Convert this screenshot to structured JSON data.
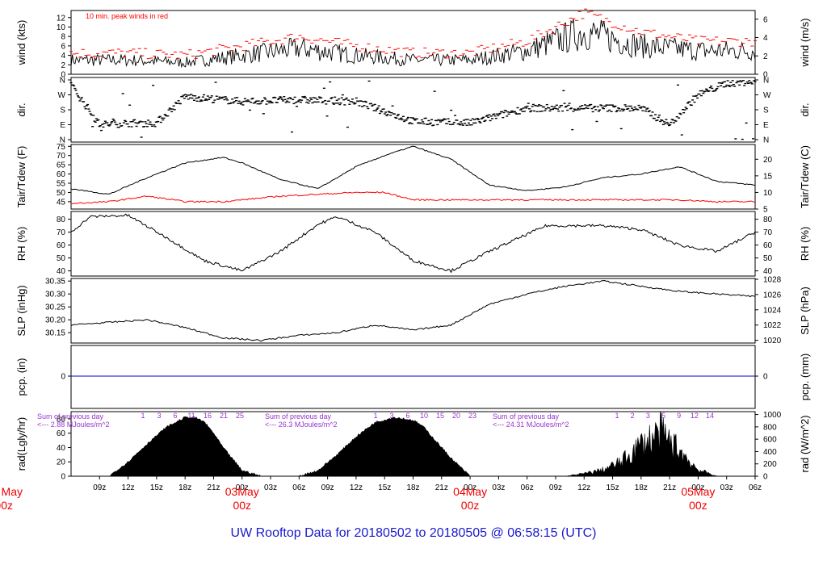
{
  "footer_title": "UW Rooftop Data for 20180502  to  20180505 @ 06:58:15  (UTC)",
  "x_axis": {
    "ticks": [
      "09z",
      "12z",
      "15z",
      "18z",
      "21z",
      "00z",
      "03z",
      "06z",
      "09z",
      "12z",
      "15z",
      "18z",
      "21z",
      "00z",
      "03z",
      "06z",
      "09z",
      "12z",
      "15z",
      "18z",
      "21z",
      "00z",
      "03z",
      "06z"
    ],
    "day_labels": [
      {
        "date": "May",
        "hour": "00z"
      },
      {
        "date": "03May",
        "hour": "00z"
      },
      {
        "date": "04May",
        "hour": "00z"
      },
      {
        "date": "05May",
        "hour": "00z"
      }
    ]
  },
  "colors": {
    "peak": "#ff0000",
    "series": "#000000",
    "dew": "#ff0000",
    "precip": "#0000cc",
    "day_label": "#ee0000",
    "footer": "#1a1acc",
    "annotation": "#9933cc"
  },
  "chart_data": [
    {
      "type": "line",
      "name": "wind",
      "ylabel": "wind (kts)",
      "ylabel_right": "wind (m/s)",
      "annotation": "10 min. peak winds in red",
      "yticks": [
        "0",
        "2",
        "4",
        "6",
        "8",
        "10",
        "12"
      ],
      "yticks_right": [
        "0",
        "2",
        "4",
        "6"
      ],
      "ylim": [
        0,
        13.5
      ],
      "hours": [
        0,
        6,
        12,
        18,
        24,
        30,
        36,
        42,
        48,
        54,
        60,
        66,
        72
      ],
      "series": [
        {
          "values": [
            3,
            3,
            2.5,
            4,
            5.5,
            4,
            3,
            3,
            5,
            9,
            6,
            5,
            5
          ]
        },
        {
          "values": [
            4.5,
            4.5,
            4,
            6,
            8,
            6,
            4.5,
            4.5,
            7,
            13,
            9,
            7,
            7
          ]
        }
      ]
    },
    {
      "type": "scatter",
      "name": "dir",
      "ylabel": "dir.",
      "yticks": [
        "N",
        "E",
        "S",
        "W",
        "N"
      ],
      "yticks_right": [
        "N",
        "E",
        "S",
        "W",
        "N"
      ],
      "hours": [
        0,
        3,
        6,
        9,
        12,
        18,
        24,
        30,
        36,
        42,
        48,
        54,
        60,
        63,
        66,
        69,
        72
      ],
      "values": [
        330,
        90,
        100,
        100,
        260,
        230,
        240,
        230,
        110,
        100,
        190,
        190,
        190,
        90,
        270,
        340,
        350
      ]
    },
    {
      "type": "line",
      "name": "temp",
      "ylabel": "Tair/Tdew (F)",
      "ylabel_right": "Tair/Tdew (C)",
      "yticks": [
        "45",
        "50",
        "55",
        "60",
        "65",
        "70",
        "75"
      ],
      "yticks_right": [
        "5",
        "10",
        "15",
        "20"
      ],
      "ylim": [
        41,
        76
      ],
      "hours": [
        0,
        4,
        8,
        12,
        16,
        18,
        22,
        26,
        30,
        33,
        36,
        40,
        44,
        48,
        52,
        56,
        60,
        64,
        68,
        72
      ],
      "series": [
        {
          "values": [
            52,
            49,
            58,
            66,
            69,
            66,
            57,
            52,
            64,
            70,
            75,
            68,
            54,
            51,
            53,
            58,
            60,
            64,
            56,
            54
          ]
        },
        {
          "values": [
            44,
            45,
            48,
            45,
            45,
            46,
            48,
            49,
            50,
            50,
            46,
            46,
            46,
            46,
            46,
            46,
            46,
            46,
            45,
            45
          ]
        }
      ]
    },
    {
      "type": "line",
      "name": "rh",
      "ylabel": "RH (%)",
      "ylabel_right": "RH (%)",
      "yticks": [
        "40",
        "50",
        "60",
        "70",
        "80"
      ],
      "yticks_right": [
        "40",
        "50",
        "60",
        "70",
        "80"
      ],
      "ylim": [
        36,
        86
      ],
      "hours": [
        0,
        2,
        6,
        10,
        14,
        18,
        22,
        26,
        28,
        32,
        36,
        40,
        44,
        50,
        56,
        60,
        64,
        68,
        72
      ],
      "values": [
        70,
        82,
        83,
        66,
        48,
        40,
        55,
        76,
        82,
        70,
        48,
        40,
        55,
        75,
        75,
        72,
        60,
        55,
        70
      ]
    },
    {
      "type": "line",
      "name": "slp",
      "ylabel": "SLP (inHg)",
      "ylabel_right": "SLP (hPa)",
      "yticks": [
        "30.15",
        "30.20",
        "30.25",
        "30.30",
        "30.35"
      ],
      "yticks_right": [
        "1020",
        "1022",
        "1024",
        "1026",
        "1028"
      ],
      "ylim": [
        30.11,
        30.36
      ],
      "hours": [
        0,
        4,
        8,
        12,
        16,
        20,
        24,
        28,
        32,
        36,
        40,
        44,
        48,
        52,
        56,
        60,
        64,
        68,
        72
      ],
      "values": [
        30.18,
        30.19,
        30.2,
        30.17,
        30.13,
        30.12,
        30.14,
        30.15,
        30.18,
        30.16,
        30.18,
        30.26,
        30.3,
        30.33,
        30.35,
        30.33,
        30.31,
        30.3,
        30.29
      ]
    },
    {
      "type": "line",
      "name": "pcp",
      "ylabel": "pcp. (in)",
      "ylabel_right": "pcp. (mm)",
      "yticks": [
        "0"
      ],
      "yticks_right": [
        "0"
      ],
      "values": [
        0
      ]
    },
    {
      "type": "area",
      "name": "rad",
      "ylabel": "rad(Lgly/hr)",
      "ylabel_right": "rad (W/m^2)",
      "yticks": [
        "0",
        "20",
        "40",
        "60",
        "80"
      ],
      "yticks_right": [
        "0",
        "200",
        "400",
        "600",
        "800",
        "1000"
      ],
      "ylim": [
        0,
        90
      ],
      "hours": [
        4,
        6,
        8,
        10,
        12,
        13,
        14,
        15,
        16,
        18,
        20,
        22,
        24,
        26,
        28,
        30,
        32,
        34,
        36,
        37,
        38,
        40,
        42,
        44,
        46,
        49,
        52,
        54,
        56,
        58,
        60,
        62,
        64,
        65,
        66,
        68
      ],
      "values": [
        0,
        20,
        45,
        68,
        82,
        82,
        76,
        60,
        40,
        8,
        0,
        0,
        0,
        8,
        30,
        55,
        75,
        82,
        78,
        70,
        55,
        25,
        0,
        0,
        0,
        0,
        0,
        5,
        12,
        28,
        60,
        82,
        50,
        30,
        12,
        0
      ],
      "annotations": [
        {
          "text": "Sum of previous day",
          "text2": "<--- 2.88 MJoules/m^2"
        },
        {
          "text": "Sum of previous day",
          "text2": "<--- 26.3 MJoules/m^2"
        },
        {
          "text": "Sum of previous day",
          "text2": "<--- 24.31 MJoules/m^2"
        }
      ],
      "hour_marks": [
        [
          "1",
          "3",
          "6",
          "11",
          "16",
          "21",
          "25"
        ],
        [
          "1",
          "3",
          "6",
          "10",
          "15",
          "20",
          "23"
        ],
        [
          "1",
          "2",
          "3",
          "5",
          "9",
          "12",
          "14"
        ]
      ]
    }
  ]
}
